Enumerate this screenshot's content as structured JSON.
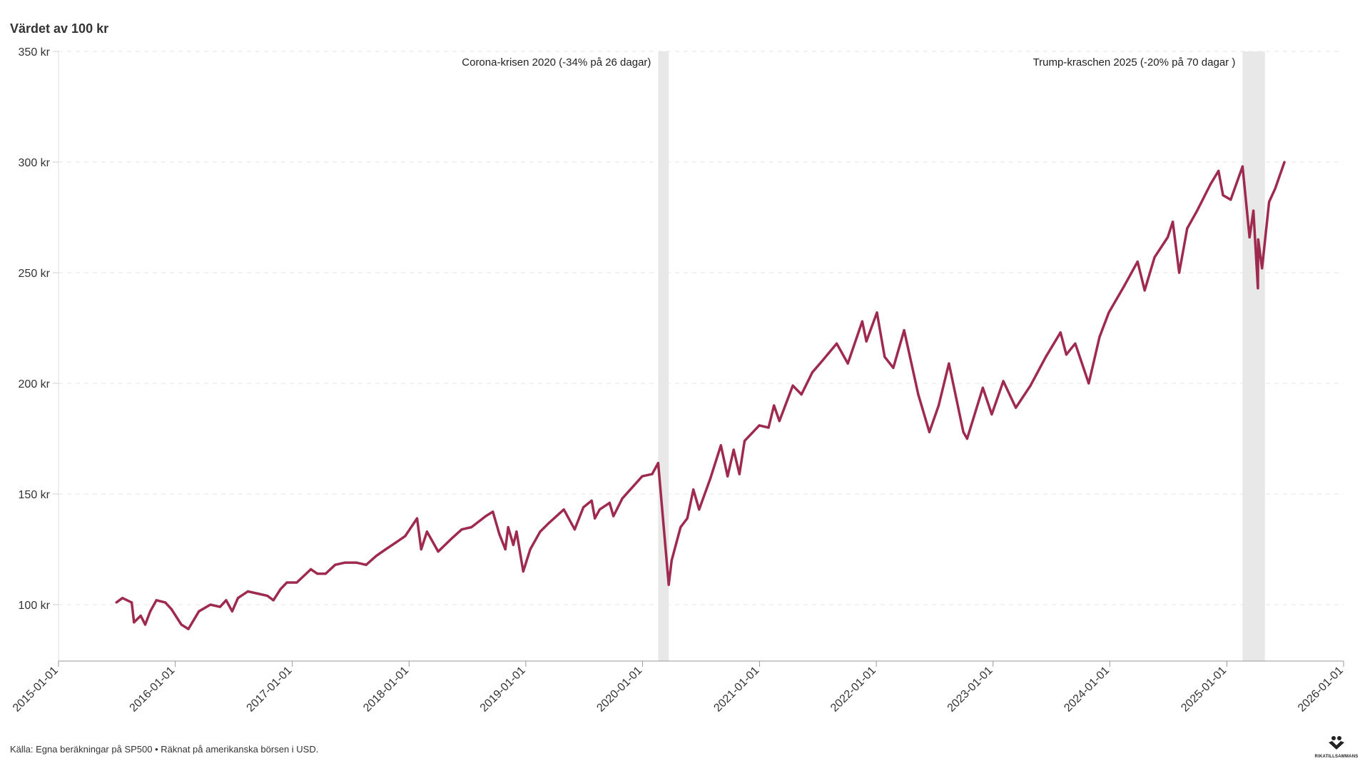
{
  "title": "Värdet av 100 kr",
  "source": "Källa: Egna beräkningar på SP500 • Räknat på amerikanska börsen i USD.",
  "logo_text": "RIKATILLSAMMANS",
  "chart_data": {
    "type": "line",
    "title": "Värdet av 100 kr",
    "ylim": [
      75,
      350
    ],
    "xlim": [
      "2015-01-01",
      "2026-01-01"
    ],
    "yticks": [
      100,
      150,
      200,
      250,
      300,
      350
    ],
    "ytick_labels": [
      "100 kr",
      "150 kr",
      "200 kr",
      "250 kr",
      "300 kr",
      "350 kr"
    ],
    "xtick_labels": [
      "2015-01-01",
      "2016-01-01",
      "2017-01-01",
      "2018-01-01",
      "2019-01-01",
      "2020-01-01",
      "2021-01-01",
      "2022-01-01",
      "2023-01-01",
      "2024-01-01",
      "2025-01-01",
      "2026-01-01"
    ],
    "grid": "horizontal dashed",
    "line_color": "#9e2a4f",
    "band_color": "#e8e8e8",
    "annotations": [
      {
        "label": "Corona-krisen 2020 (-34% på 26 dagar)",
        "start": "2020-02-19",
        "end": "2020-03-23"
      },
      {
        "label": "Trump-kraschen 2025 (-20% på 70 dagar )",
        "start": "2025-02-19",
        "end": "2025-04-30"
      }
    ],
    "series": [
      {
        "points": [
          [
            "2015-07-01",
            101
          ],
          [
            "2015-07-20",
            103
          ],
          [
            "2015-08-18",
            101
          ],
          [
            "2015-08-25",
            92
          ],
          [
            "2015-09-15",
            95
          ],
          [
            "2015-09-29",
            91
          ],
          [
            "2015-10-15",
            97
          ],
          [
            "2015-11-03",
            102
          ],
          [
            "2015-12-01",
            101
          ],
          [
            "2015-12-20",
            98
          ],
          [
            "2016-01-20",
            91
          ],
          [
            "2016-02-11",
            89
          ],
          [
            "2016-03-15",
            97
          ],
          [
            "2016-04-20",
            100
          ],
          [
            "2016-05-20",
            99
          ],
          [
            "2016-06-08",
            102
          ],
          [
            "2016-06-27",
            97
          ],
          [
            "2016-07-15",
            103
          ],
          [
            "2016-08-15",
            106
          ],
          [
            "2016-09-15",
            105
          ],
          [
            "2016-10-15",
            104
          ],
          [
            "2016-11-03",
            102
          ],
          [
            "2016-11-25",
            107
          ],
          [
            "2016-12-15",
            110
          ],
          [
            "2017-01-15",
            110
          ],
          [
            "2017-02-28",
            116
          ],
          [
            "2017-03-20",
            114
          ],
          [
            "2017-04-15",
            114
          ],
          [
            "2017-05-15",
            118
          ],
          [
            "2017-06-15",
            119
          ],
          [
            "2017-07-20",
            119
          ],
          [
            "2017-08-20",
            118
          ],
          [
            "2017-09-20",
            122
          ],
          [
            "2017-10-20",
            125
          ],
          [
            "2017-11-20",
            128
          ],
          [
            "2017-12-20",
            131
          ],
          [
            "2018-01-26",
            139
          ],
          [
            "2018-02-08",
            125
          ],
          [
            "2018-02-26",
            133
          ],
          [
            "2018-04-02",
            124
          ],
          [
            "2018-05-15",
            130
          ],
          [
            "2018-06-15",
            134
          ],
          [
            "2018-07-15",
            135
          ],
          [
            "2018-08-29",
            140
          ],
          [
            "2018-09-20",
            142
          ],
          [
            "2018-10-10",
            132
          ],
          [
            "2018-10-29",
            125
          ],
          [
            "2018-11-07",
            135
          ],
          [
            "2018-11-23",
            127
          ],
          [
            "2018-12-03",
            133
          ],
          [
            "2018-12-24",
            115
          ],
          [
            "2019-01-15",
            125
          ],
          [
            "2019-02-15",
            133
          ],
          [
            "2019-03-15",
            137
          ],
          [
            "2019-04-30",
            143
          ],
          [
            "2019-06-03",
            134
          ],
          [
            "2019-06-30",
            144
          ],
          [
            "2019-07-26",
            147
          ],
          [
            "2019-08-05",
            139
          ],
          [
            "2019-08-20",
            143
          ],
          [
            "2019-09-20",
            146
          ],
          [
            "2019-10-02",
            140
          ],
          [
            "2019-10-30",
            148
          ],
          [
            "2019-11-30",
            153
          ],
          [
            "2019-12-31",
            158
          ],
          [
            "2020-01-31",
            159
          ],
          [
            "2020-02-19",
            164
          ],
          [
            "2020-03-23",
            109
          ],
          [
            "2020-04-01",
            120
          ],
          [
            "2020-04-29",
            135
          ],
          [
            "2020-05-20",
            139
          ],
          [
            "2020-06-08",
            152
          ],
          [
            "2020-06-26",
            143
          ],
          [
            "2020-07-31",
            157
          ],
          [
            "2020-09-02",
            172
          ],
          [
            "2020-09-23",
            158
          ],
          [
            "2020-10-12",
            170
          ],
          [
            "2020-10-30",
            159
          ],
          [
            "2020-11-15",
            174
          ],
          [
            "2020-12-31",
            181
          ],
          [
            "2021-01-29",
            180
          ],
          [
            "2021-02-15",
            190
          ],
          [
            "2021-03-04",
            183
          ],
          [
            "2021-04-15",
            199
          ],
          [
            "2021-05-12",
            195
          ],
          [
            "2021-06-15",
            205
          ],
          [
            "2021-07-15",
            210
          ],
          [
            "2021-08-30",
            218
          ],
          [
            "2021-10-04",
            209
          ],
          [
            "2021-11-18",
            228
          ],
          [
            "2021-12-01",
            219
          ],
          [
            "2022-01-03",
            232
          ],
          [
            "2022-01-27",
            212
          ],
          [
            "2022-02-23",
            207
          ],
          [
            "2022-03-29",
            224
          ],
          [
            "2022-05-12",
            195
          ],
          [
            "2022-06-16",
            178
          ],
          [
            "2022-07-15",
            190
          ],
          [
            "2022-08-16",
            209
          ],
          [
            "2022-09-30",
            178
          ],
          [
            "2022-10-12",
            175
          ],
          [
            "2022-11-30",
            198
          ],
          [
            "2022-12-28",
            186
          ],
          [
            "2023-02-02",
            201
          ],
          [
            "2023-03-13",
            189
          ],
          [
            "2023-04-28",
            199
          ],
          [
            "2023-06-15",
            212
          ],
          [
            "2023-07-31",
            223
          ],
          [
            "2023-08-18",
            213
          ],
          [
            "2023-09-15",
            218
          ],
          [
            "2023-10-27",
            200
          ],
          [
            "2023-11-30",
            221
          ],
          [
            "2023-12-29",
            232
          ],
          [
            "2024-02-15",
            244
          ],
          [
            "2024-03-28",
            255
          ],
          [
            "2024-04-19",
            242
          ],
          [
            "2024-05-20",
            257
          ],
          [
            "2024-06-30",
            266
          ],
          [
            "2024-07-16",
            273
          ],
          [
            "2024-08-05",
            250
          ],
          [
            "2024-08-30",
            270
          ],
          [
            "2024-09-30",
            278
          ],
          [
            "2024-11-11",
            290
          ],
          [
            "2024-12-06",
            296
          ],
          [
            "2024-12-20",
            285
          ],
          [
            "2025-01-13",
            283
          ],
          [
            "2025-02-19",
            298
          ],
          [
            "2025-03-13",
            266
          ],
          [
            "2025-03-25",
            278
          ],
          [
            "2025-04-08",
            243
          ],
          [
            "2025-04-09",
            265
          ],
          [
            "2025-04-21",
            252
          ],
          [
            "2025-05-13",
            282
          ],
          [
            "2025-06-01",
            288
          ],
          [
            "2025-06-30",
            300
          ]
        ]
      }
    ]
  }
}
